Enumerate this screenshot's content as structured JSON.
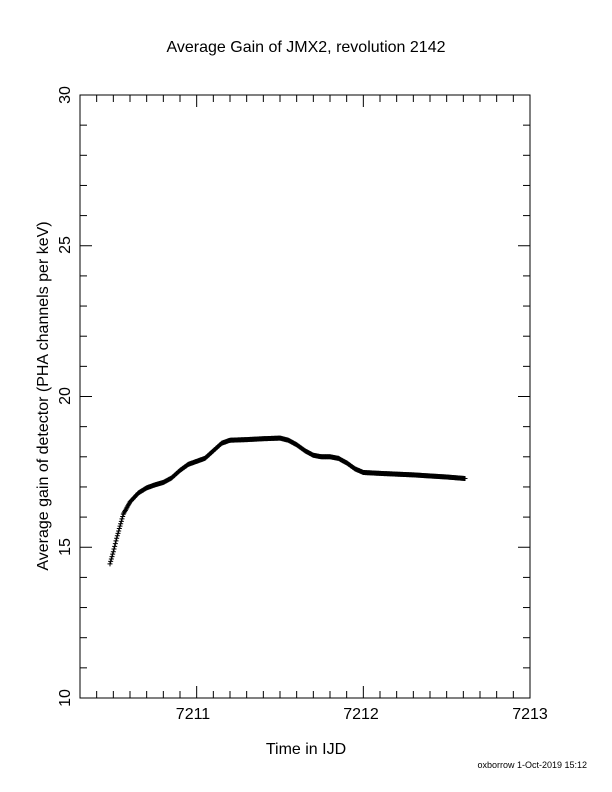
{
  "chart_data": {
    "type": "scatter",
    "title": "Average Gain of JMX2, revolution 2142",
    "xlabel": "Time in IJD",
    "ylabel": "Average gain of detector (PHA channels per keV)",
    "xlim": [
      7210.3,
      7213
    ],
    "ylim": [
      10,
      30
    ],
    "xticks": [
      "7211",
      "7212",
      "7213"
    ],
    "yticks": [
      "10",
      "15",
      "20",
      "25",
      "30"
    ],
    "grid": false,
    "marker": "plus",
    "color": "#000000",
    "anchors": [
      [
        7210.48,
        14.45
      ],
      [
        7210.5,
        14.85
      ],
      [
        7210.52,
        15.3
      ],
      [
        7210.54,
        15.7
      ],
      [
        7210.56,
        16.1
      ],
      [
        7210.6,
        16.5
      ],
      [
        7210.65,
        16.8
      ],
      [
        7210.7,
        16.97
      ],
      [
        7210.75,
        17.07
      ],
      [
        7210.8,
        17.15
      ],
      [
        7210.85,
        17.3
      ],
      [
        7210.9,
        17.55
      ],
      [
        7210.95,
        17.75
      ],
      [
        7211.0,
        17.85
      ],
      [
        7211.05,
        17.95
      ],
      [
        7211.1,
        18.2
      ],
      [
        7211.15,
        18.45
      ],
      [
        7211.2,
        18.55
      ],
      [
        7211.3,
        18.57
      ],
      [
        7211.4,
        18.6
      ],
      [
        7211.5,
        18.62
      ],
      [
        7211.55,
        18.55
      ],
      [
        7211.6,
        18.4
      ],
      [
        7211.65,
        18.2
      ],
      [
        7211.7,
        18.05
      ],
      [
        7211.75,
        18.0
      ],
      [
        7211.8,
        18.0
      ],
      [
        7211.85,
        17.95
      ],
      [
        7211.9,
        17.8
      ],
      [
        7211.95,
        17.6
      ],
      [
        7212.0,
        17.48
      ],
      [
        7212.1,
        17.45
      ],
      [
        7212.3,
        17.4
      ],
      [
        7212.5,
        17.33
      ],
      [
        7212.61,
        17.28
      ]
    ]
  },
  "footer": {
    "stamp": "oxborrow  1-Oct-2019 15:12"
  }
}
